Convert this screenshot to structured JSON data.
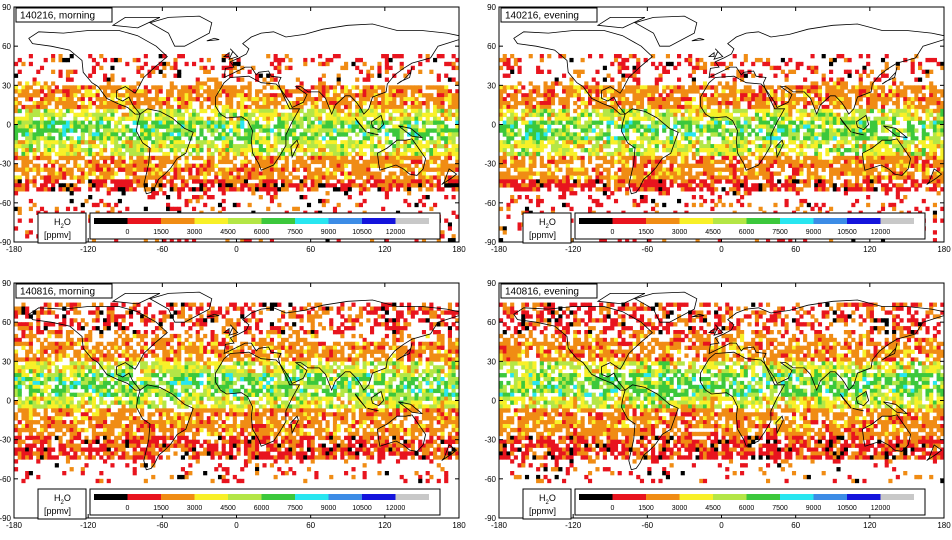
{
  "panels": [
    {
      "title": "140216, morning",
      "season": "feb",
      "time": "morning"
    },
    {
      "title": "140216, evening",
      "season": "feb",
      "time": "evening"
    },
    {
      "title": "140816, morning",
      "season": "aug",
      "time": "morning"
    },
    {
      "title": "140816, evening",
      "season": "aug",
      "time": "evening"
    }
  ],
  "axes": {
    "lat_ticks": [
      "90",
      "60",
      "30",
      "0",
      "-30",
      "-60",
      "-90"
    ],
    "lon_ticks": [
      "-180",
      "-120",
      "-60",
      "0",
      "60",
      "120",
      "180"
    ],
    "lat_range": [
      -90,
      90
    ],
    "lon_range": [
      -180,
      180
    ]
  },
  "legend": {
    "label_line1": "H",
    "label_sub": "2",
    "label_line1_tail": "O",
    "label_line2": "[ppmv]",
    "colors": [
      "#000000",
      "#e8141e",
      "#f08c14",
      "#f8f028",
      "#b4e646",
      "#3cc83c",
      "#28e6f0",
      "#3c8ce6",
      "#1414dc",
      "#c8c8c8"
    ],
    "tick_labels": [
      "0",
      "1500",
      "3000",
      "4500",
      "6000",
      "7500",
      "9000",
      "10500",
      "12000"
    ]
  }
}
